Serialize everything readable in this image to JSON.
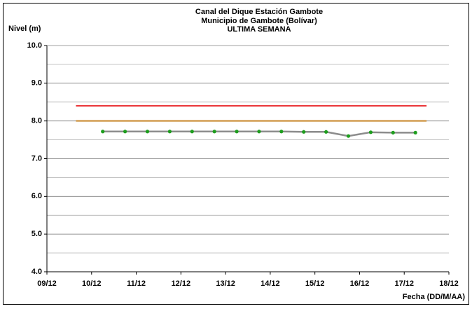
{
  "chart_data": {
    "type": "line",
    "title": "Canal del Dique  Estación Gambote",
    "subtitle": "Municipio de Gambote (Bolívar)",
    "subtitle2": "ULTIMA SEMANA",
    "ylabel": "Nivel (m)",
    "xlabel": "Fecha (DD/M/AA)",
    "xlim": [
      9,
      18
    ],
    "xticks": [
      {
        "value": 9,
        "label": "09/12"
      },
      {
        "value": 10,
        "label": "10/12"
      },
      {
        "value": 11,
        "label": "11/12"
      },
      {
        "value": 12,
        "label": "12/12"
      },
      {
        "value": 13,
        "label": "13/12"
      },
      {
        "value": 14,
        "label": "14/12"
      },
      {
        "value": 15,
        "label": "15/12"
      },
      {
        "value": 16,
        "label": "16/12"
      },
      {
        "value": 17,
        "label": "17/12"
      },
      {
        "value": 18,
        "label": "18/12"
      }
    ],
    "ylim": [
      4,
      10
    ],
    "yticks": [
      {
        "value": 4,
        "label": "4.0"
      },
      {
        "value": 5,
        "label": "5.0"
      },
      {
        "value": 6,
        "label": "6.0"
      },
      {
        "value": 7,
        "label": "7.0"
      },
      {
        "value": 8,
        "label": "8.0"
      },
      {
        "value": 9,
        "label": "9.0"
      },
      {
        "value": 10,
        "label": "10.0"
      }
    ],
    "yminorticks": [
      4.5,
      5.5,
      6.5,
      7.5,
      8.5,
      9.5
    ],
    "grid": true,
    "reference_lines": [
      {
        "value": 8.4,
        "color": "#e8262a",
        "x": [
          9.65,
          17.5
        ]
      },
      {
        "value": 8.0,
        "color": "#c8862a",
        "x": [
          9.65,
          17.5
        ]
      }
    ],
    "series": [
      {
        "color": "#8c8c8c",
        "marker_color": "#1e9e1e",
        "x": [
          10.25,
          10.75,
          11.25,
          11.75,
          12.25,
          12.75,
          13.25,
          13.75,
          14.25,
          14.75,
          15.25,
          15.75,
          16.25,
          16.75,
          17.25
        ],
        "values": [
          7.72,
          7.72,
          7.72,
          7.72,
          7.72,
          7.72,
          7.72,
          7.72,
          7.72,
          7.71,
          7.71,
          7.6,
          7.7,
          7.69,
          7.69
        ]
      }
    ]
  }
}
